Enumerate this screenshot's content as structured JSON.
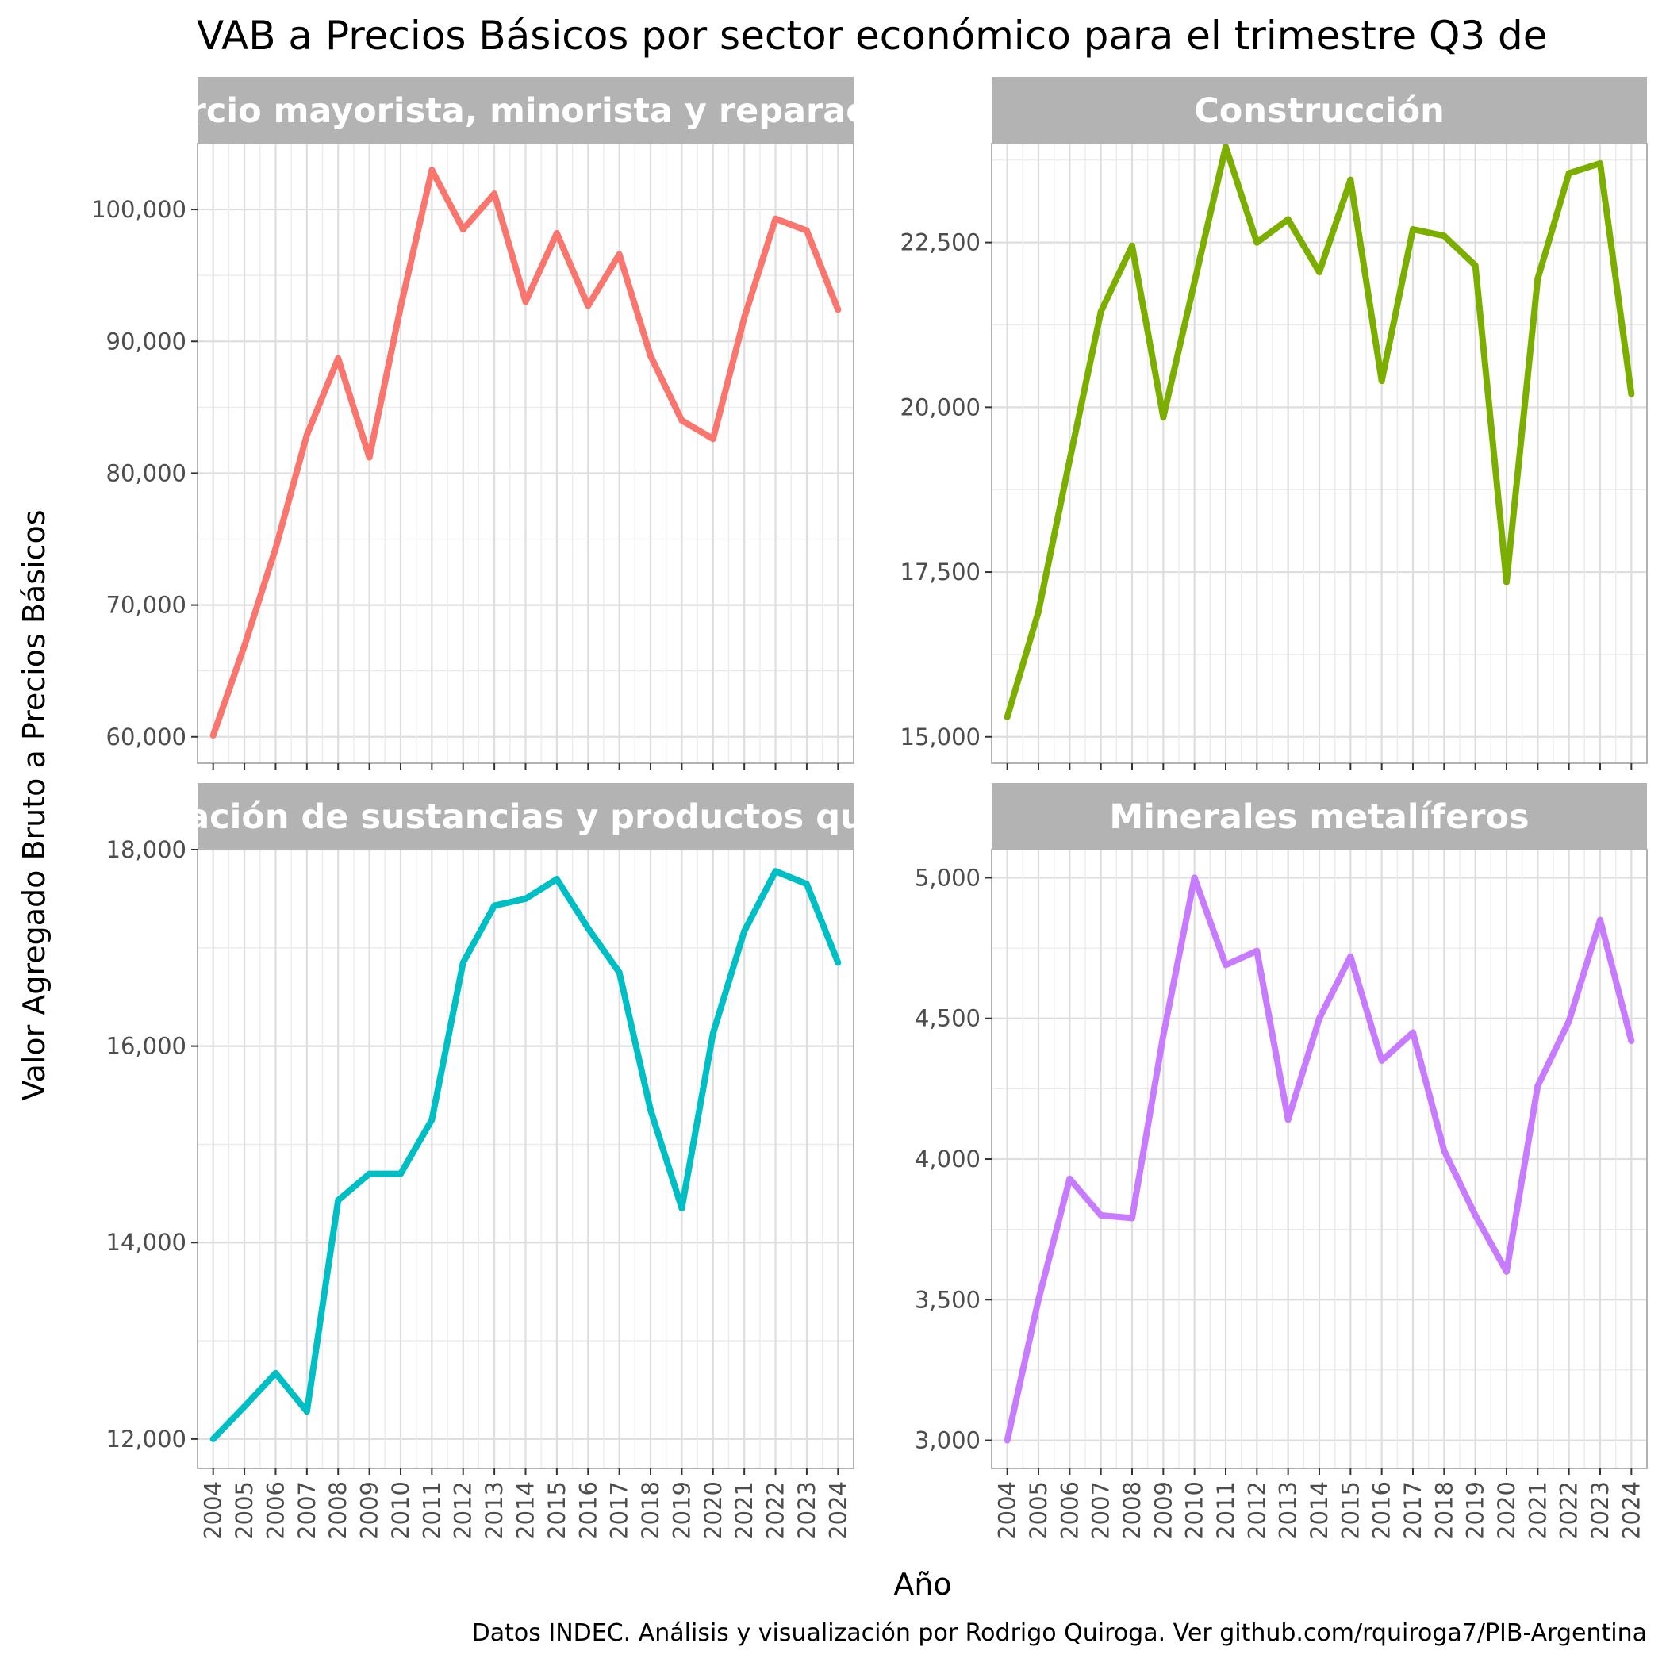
{
  "title": "VAB a Precios Básicos por sector económico para el trimestre Q3 de",
  "xlabel": "Año",
  "ylabel": "Valor Agregado Bruto a Precios Básicos",
  "caption": "Datos INDEC. Análisis y visualización por Rodrigo Quiroga. Ver github.com/rquiroga7/PIB-Argentina",
  "chart_data": [
    {
      "type": "line",
      "title": "Comercio mayorista, minorista y reparaciones",
      "color": "#F8766D",
      "x": [
        2004,
        2005,
        2006,
        2007,
        2008,
        2009,
        2010,
        2011,
        2012,
        2013,
        2014,
        2015,
        2016,
        2017,
        2018,
        2019,
        2020,
        2021,
        2022,
        2023,
        2024
      ],
      "values": [
        60100,
        66900,
        74300,
        82900,
        88700,
        81200,
        92600,
        103000,
        98500,
        101200,
        93000,
        98200,
        92700,
        96600,
        88900,
        84000,
        82600,
        91800,
        99300,
        98400,
        92400
      ],
      "yticks": [
        60000,
        70000,
        80000,
        90000,
        100000
      ],
      "ytick_labels": [
        "60,000",
        "70,000",
        "80,000",
        "90,000",
        "100,000"
      ],
      "ylim": [
        58000,
        105000
      ],
      "grid": true
    },
    {
      "type": "line",
      "title": "Construcción",
      "color": "#7CAE00",
      "x": [
        2004,
        2005,
        2006,
        2007,
        2008,
        2009,
        2010,
        2011,
        2012,
        2013,
        2014,
        2015,
        2016,
        2017,
        2018,
        2019,
        2020,
        2021,
        2022,
        2023,
        2024
      ],
      "values": [
        15300,
        16900,
        19200,
        21450,
        22450,
        19850,
        21900,
        23950,
        22500,
        22850,
        22050,
        23450,
        20400,
        22700,
        22600,
        22150,
        17350,
        21950,
        23550,
        23700,
        20200
      ],
      "yticks": [
        15000,
        17500,
        20000,
        22500
      ],
      "ytick_labels": [
        "15,000",
        "17,500",
        "20,000",
        "22,500"
      ],
      "ylim": [
        14600,
        24000
      ],
      "grid": true
    },
    {
      "type": "line",
      "title": "Elaboración de sustancias y productos químicos",
      "color": "#00BFC4",
      "x": [
        2004,
        2005,
        2006,
        2007,
        2008,
        2009,
        2010,
        2011,
        2012,
        2013,
        2014,
        2015,
        2016,
        2017,
        2018,
        2019,
        2020,
        2021,
        2022,
        2023,
        2024
      ],
      "values": [
        12000,
        12330,
        12670,
        12280,
        14430,
        14700,
        14700,
        15250,
        16850,
        17430,
        17500,
        17700,
        17200,
        16750,
        15350,
        14350,
        16130,
        17170,
        17780,
        17650,
        16850
      ],
      "yticks": [
        12000,
        14000,
        16000,
        18000
      ],
      "ytick_labels": [
        "12,000",
        "14,000",
        "16,000",
        "18,000"
      ],
      "ylim": [
        11700,
        18000
      ],
      "grid": true
    },
    {
      "type": "line",
      "title": "Minerales metalíferos",
      "color": "#C77CFF",
      "x": [
        2004,
        2005,
        2006,
        2007,
        2008,
        2009,
        2010,
        2011,
        2012,
        2013,
        2014,
        2015,
        2016,
        2017,
        2018,
        2019,
        2020,
        2021,
        2022,
        2023,
        2024
      ],
      "values": [
        3000,
        3500,
        3930,
        3800,
        3790,
        4440,
        5000,
        4690,
        4740,
        4140,
        4500,
        4720,
        4350,
        4450,
        4030,
        3800,
        3600,
        4260,
        4490,
        4850,
        4420
      ],
      "yticks": [
        3000,
        3500,
        4000,
        4500,
        5000
      ],
      "ytick_labels": [
        "3,000",
        "3,500",
        "4,000",
        "4,500",
        "5,000"
      ],
      "ylim": [
        2900,
        5100
      ],
      "grid": true
    }
  ]
}
